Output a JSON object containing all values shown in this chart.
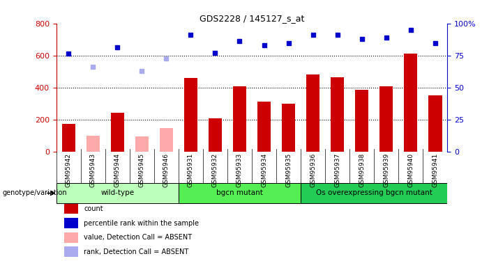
{
  "title": "GDS2228 / 145127_s_at",
  "samples": [
    "GSM95942",
    "GSM95943",
    "GSM95944",
    "GSM95945",
    "GSM95946",
    "GSM95931",
    "GSM95932",
    "GSM95933",
    "GSM95934",
    "GSM95935",
    "GSM95936",
    "GSM95937",
    "GSM95938",
    "GSM95939",
    "GSM95940",
    "GSM95941"
  ],
  "count_values": [
    170,
    null,
    240,
    null,
    null,
    460,
    205,
    405,
    310,
    300,
    480,
    465,
    385,
    405,
    610,
    350
  ],
  "count_absent": [
    null,
    100,
    null,
    95,
    145,
    null,
    null,
    null,
    null,
    null,
    null,
    null,
    null,
    null,
    null,
    null
  ],
  "rank_values_pct": [
    76.25,
    null,
    81.25,
    null,
    null,
    91.25,
    76.875,
    86.25,
    83.125,
    84.375,
    91.25,
    91.25,
    88.125,
    88.75,
    95.0,
    84.375
  ],
  "rank_absent_pct": [
    null,
    66.25,
    null,
    63.125,
    72.5,
    null,
    null,
    null,
    null,
    null,
    null,
    null,
    null,
    null,
    null,
    null
  ],
  "ylim_left": [
    0,
    800
  ],
  "ylim_right": [
    0,
    100
  ],
  "yticks_left": [
    0,
    200,
    400,
    600,
    800
  ],
  "yticks_right": [
    0,
    25,
    50,
    75,
    100
  ],
  "ytick_labels_right": [
    "0",
    "25",
    "50",
    "75",
    "100%"
  ],
  "groups": [
    {
      "label": "wild-type",
      "start": 0,
      "end": 5,
      "color": "#bbffbb"
    },
    {
      "label": "bgcn mutant",
      "start": 5,
      "end": 10,
      "color": "#55ee55"
    },
    {
      "label": "Os overexpressing bgcn mutant",
      "start": 10,
      "end": 16,
      "color": "#22cc55"
    }
  ],
  "bar_color_present": "#cc0000",
  "bar_color_absent": "#ffaaaa",
  "rank_color_present": "#0000cc",
  "rank_color_absent": "#aaaaee",
  "bg_color": "#d8d8d8",
  "bar_width": 0.55,
  "legend_items": [
    {
      "label": "count",
      "color": "#cc0000"
    },
    {
      "label": "percentile rank within the sample",
      "color": "#0000cc"
    },
    {
      "label": "value, Detection Call = ABSENT",
      "color": "#ffaaaa"
    },
    {
      "label": "rank, Detection Call = ABSENT",
      "color": "#aaaaee"
    }
  ]
}
